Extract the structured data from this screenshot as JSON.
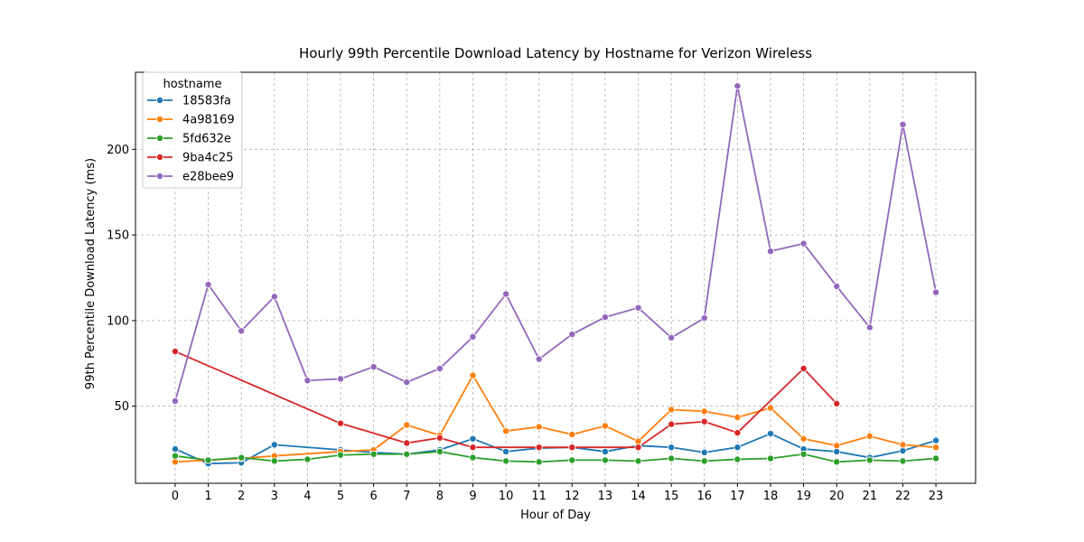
{
  "chart_data": {
    "type": "line",
    "title": "Hourly 99th Percentile Download Latency by Hostname for Verizon Wireless",
    "xlabel": "Hour of Day",
    "ylabel": "99th Percentile Download Latency (ms)",
    "x": [
      0,
      1,
      2,
      3,
      4,
      5,
      6,
      7,
      8,
      9,
      10,
      11,
      12,
      13,
      14,
      15,
      16,
      17,
      18,
      19,
      20,
      21,
      22,
      23
    ],
    "xlim": [
      -1.2,
      24.2
    ],
    "ylim": [
      5,
      245
    ],
    "yticks": [
      50,
      100,
      150,
      200
    ],
    "grid": true,
    "legend": {
      "title": "hostname",
      "placement": "top-left"
    },
    "series": [
      {
        "name": "18583fa",
        "color": "#1f77b4",
        "points": [
          [
            0,
            25
          ],
          [
            1,
            16.5
          ],
          [
            2,
            17
          ],
          [
            3,
            27.5
          ],
          [
            5,
            24.5
          ],
          [
            6,
            23
          ],
          [
            7,
            22
          ],
          [
            8,
            24.5
          ],
          [
            9,
            31
          ],
          [
            10,
            23.5
          ],
          [
            11,
            25.5
          ],
          [
            12,
            26
          ],
          [
            13,
            23.5
          ],
          [
            14,
            27
          ],
          [
            15,
            26
          ],
          [
            16,
            23
          ],
          [
            17,
            26
          ],
          [
            18,
            34
          ],
          [
            19,
            25
          ],
          [
            20,
            23.5
          ],
          [
            21,
            20
          ],
          [
            22,
            24
          ],
          [
            23,
            30
          ]
        ]
      },
      {
        "name": "4a98169",
        "color": "#ff7f0e",
        "points": [
          [
            0,
            17.5
          ],
          [
            1,
            18.5
          ],
          [
            2,
            19.5
          ],
          [
            3,
            21
          ],
          [
            5,
            23.5
          ],
          [
            6,
            24.5
          ],
          [
            7,
            39
          ],
          [
            8,
            33
          ],
          [
            9,
            68
          ],
          [
            10,
            35.5
          ],
          [
            11,
            38
          ],
          [
            12,
            33.5
          ],
          [
            13,
            38.5
          ],
          [
            14,
            29.5
          ],
          [
            15,
            48
          ],
          [
            16,
            47
          ],
          [
            17,
            43.5
          ],
          [
            18,
            49
          ],
          [
            19,
            31
          ],
          [
            20,
            27
          ],
          [
            21,
            32.5
          ],
          [
            22,
            27.5
          ],
          [
            23,
            26
          ]
        ]
      },
      {
        "name": "5fd632e",
        "color": "#2ca02c",
        "points": [
          [
            0,
            21
          ],
          [
            1,
            18.5
          ],
          [
            2,
            20
          ],
          [
            3,
            18
          ],
          [
            4,
            19
          ],
          [
            5,
            21.5
          ],
          [
            6,
            22
          ],
          [
            7,
            22
          ],
          [
            8,
            23.5
          ],
          [
            9,
            20
          ],
          [
            10,
            18
          ],
          [
            11,
            17.5
          ],
          [
            12,
            18.5
          ],
          [
            13,
            18.5
          ],
          [
            14,
            18
          ],
          [
            15,
            19.5
          ],
          [
            16,
            18
          ],
          [
            17,
            19
          ],
          [
            18,
            19.5
          ],
          [
            19,
            22
          ],
          [
            20,
            17.5
          ],
          [
            21,
            18.5
          ],
          [
            22,
            18
          ],
          [
            23,
            19.5
          ]
        ]
      },
      {
        "name": "9ba4c25",
        "color": "#d62728",
        "points": [
          [
            0,
            82
          ],
          [
            5,
            40
          ],
          [
            7,
            28.5
          ],
          [
            8,
            31.5
          ],
          [
            9,
            26
          ],
          [
            11,
            26
          ],
          [
            12,
            26
          ],
          [
            14,
            26
          ],
          [
            15,
            39.5
          ],
          [
            16,
            41
          ],
          [
            17,
            34.5
          ],
          [
            19,
            72
          ],
          [
            20,
            51.5
          ]
        ]
      },
      {
        "name": "e28bee9",
        "color": "#9467bd",
        "points": [
          [
            0,
            53
          ],
          [
            1,
            121
          ],
          [
            2,
            94
          ],
          [
            3,
            114
          ],
          [
            4,
            65
          ],
          [
            5,
            66
          ],
          [
            6,
            73
          ],
          [
            7,
            64
          ],
          [
            8,
            72
          ],
          [
            9,
            90.5
          ],
          [
            10,
            115.5
          ],
          [
            11,
            77.5
          ],
          [
            12,
            92
          ],
          [
            13,
            102
          ],
          [
            14,
            107.5
          ],
          [
            15,
            90
          ],
          [
            16,
            101.5
          ],
          [
            17,
            237
          ],
          [
            18,
            140.5
          ],
          [
            19,
            145
          ],
          [
            20,
            120
          ],
          [
            21,
            96
          ],
          [
            22,
            214.5
          ],
          [
            23,
            116.5
          ]
        ]
      }
    ]
  }
}
